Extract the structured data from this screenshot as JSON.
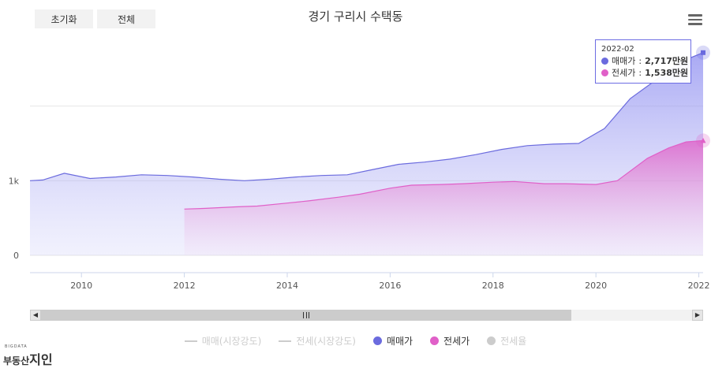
{
  "toolbar": {
    "reset_label": "초기화",
    "all_label": "전체"
  },
  "chart_data": {
    "type": "area",
    "title": "경기 구리시 수택동",
    "x_ticks": [
      "2010",
      "2012",
      "2014",
      "2016",
      "2018",
      "2020",
      "2022"
    ],
    "y_ticks": [
      "0",
      "1k"
    ],
    "ylim": [
      0,
      3000
    ],
    "xlim": [
      "2009-01",
      "2022-02"
    ],
    "grid": true,
    "legend_position": "bottom",
    "series": [
      {
        "name": "매매가",
        "color": "#6b6bde",
        "x": [
          "2009-01",
          "2009-04",
          "2009-09",
          "2010-03",
          "2010-09",
          "2011-03",
          "2011-09",
          "2012-03",
          "2012-09",
          "2013-03",
          "2013-09",
          "2014-03",
          "2014-09",
          "2015-03",
          "2015-09",
          "2016-03",
          "2016-09",
          "2017-03",
          "2017-09",
          "2018-03",
          "2018-09",
          "2019-03",
          "2019-09",
          "2020-03",
          "2020-09",
          "2021-03",
          "2021-09",
          "2022-02"
        ],
        "values": [
          1000,
          1010,
          1100,
          1030,
          1050,
          1080,
          1070,
          1050,
          1020,
          1000,
          1020,
          1050,
          1070,
          1080,
          1150,
          1220,
          1250,
          1290,
          1350,
          1420,
          1470,
          1490,
          1500,
          1700,
          2100,
          2350,
          2600,
          2717
        ]
      },
      {
        "name": "전세가",
        "color": "#e060c8",
        "x": [
          "2012-01",
          "2012-06",
          "2013-01",
          "2013-06",
          "2014-01",
          "2014-06",
          "2015-01",
          "2015-06",
          "2016-01",
          "2016-06",
          "2017-01",
          "2017-06",
          "2018-01",
          "2018-06",
          "2019-01",
          "2019-06",
          "2020-01",
          "2020-06",
          "2021-01",
          "2021-06",
          "2021-10",
          "2022-02"
        ],
        "values": [
          620,
          630,
          650,
          660,
          700,
          730,
          780,
          820,
          900,
          940,
          950,
          960,
          980,
          990,
          960,
          960,
          950,
          1000,
          1300,
          1440,
          1520,
          1538
        ]
      }
    ],
    "tooltip": {
      "date": "2022-02",
      "lines": [
        {
          "name": "매매가",
          "value": "2,717만원"
        },
        {
          "name": "전세가",
          "value": "1,538만원"
        }
      ]
    }
  },
  "legend": [
    {
      "label": "매매(시장강도)",
      "type": "line",
      "active": false
    },
    {
      "label": "전세(시장강도)",
      "type": "line",
      "active": false
    },
    {
      "label": "매매가",
      "type": "dot",
      "color": "#6b6bde",
      "active": true
    },
    {
      "label": "전세가",
      "type": "dot",
      "color": "#e060c8",
      "active": true
    },
    {
      "label": "전세율",
      "type": "dot",
      "color": "#cccccc",
      "active": false
    }
  ],
  "brand": {
    "small": "BIGDATA",
    "main_prefix": "부동산",
    "main_suffix": "지인"
  }
}
